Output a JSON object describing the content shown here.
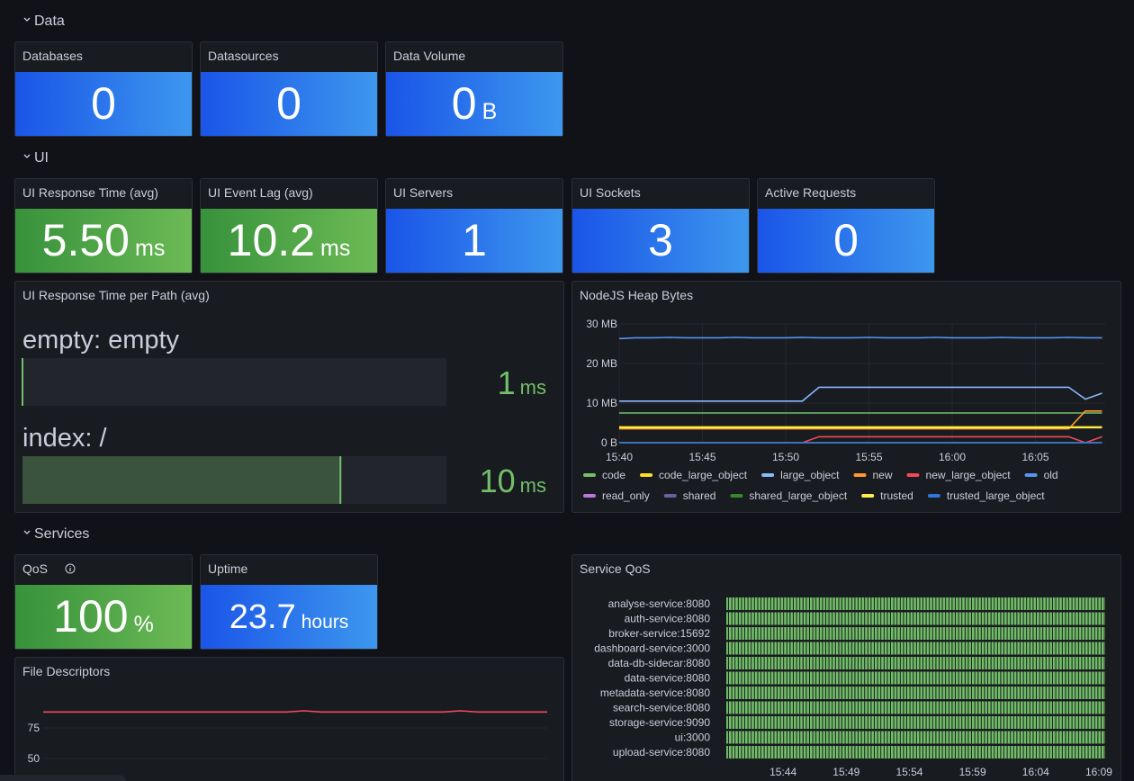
{
  "sections": [
    {
      "title": "Data"
    },
    {
      "title": "UI"
    },
    {
      "title": "Services"
    }
  ],
  "stats": [
    {
      "title": "Databases",
      "value": "0",
      "color": "blue"
    },
    {
      "title": "Datasources",
      "value": "0",
      "color": "blue"
    },
    {
      "title": "Data Volume",
      "value": "0",
      "unit": "B",
      "color": "blue"
    },
    {
      "title": "UI Response Time (avg)",
      "value": "5.50",
      "unit": "ms",
      "color": "green"
    },
    {
      "title": "UI Event Lag (avg)",
      "value": "10.2",
      "unit": "ms",
      "color": "green"
    },
    {
      "title": "UI Servers",
      "value": "1",
      "color": "blue"
    },
    {
      "title": "UI Sockets",
      "value": "3",
      "color": "blue"
    },
    {
      "title": "Active Requests",
      "value": "0",
      "color": "blue"
    },
    {
      "title": "QoS",
      "value": "100",
      "unit": "%",
      "color": "green"
    },
    {
      "title": "Uptime",
      "value": "23.7",
      "unit": "hours",
      "color": "blue"
    }
  ],
  "bar_gauge": {
    "title": "UI Response Time per Path (avg)",
    "min": 1,
    "max": 13,
    "bars": [
      {
        "label": "empty: empty",
        "value": 1,
        "unit": "ms"
      },
      {
        "label": "index: /",
        "value": 10,
        "unit": "ms"
      }
    ]
  },
  "heap_chart": {
    "type": "line",
    "title": "NodeJS Heap Bytes",
    "x": [
      "15:40",
      "15:41",
      "15:42",
      "15:43",
      "15:44",
      "15:45",
      "15:46",
      "15:47",
      "15:48",
      "15:49",
      "15:50",
      "15:51",
      "15:52",
      "15:53",
      "15:54",
      "15:55",
      "15:56",
      "15:57",
      "15:58",
      "15:59",
      "16:00",
      "16:01",
      "16:02",
      "16:03",
      "16:04",
      "16:05",
      "16:06",
      "16:07",
      "16:08",
      "16:09"
    ],
    "xticks": [
      "15:40",
      "15:45",
      "15:50",
      "15:55",
      "16:00",
      "16:05"
    ],
    "ylim": [
      0,
      30
    ],
    "yticks": [
      {
        "value": 0,
        "label": "0 B"
      },
      {
        "value": 10,
        "label": "10 MB"
      },
      {
        "value": 20,
        "label": "20 MB"
      },
      {
        "value": 30,
        "label": "30 MB"
      }
    ],
    "series": [
      {
        "name": "code",
        "color": "#73bf69",
        "values": [
          7.5,
          7.5,
          7.5,
          7.5,
          7.5,
          7.5,
          7.5,
          7.5,
          7.5,
          7.5,
          7.5,
          7.5,
          7.5,
          7.5,
          7.5,
          7.5,
          7.5,
          7.5,
          7.5,
          7.5,
          7.5,
          7.5,
          7.5,
          7.5,
          7.5,
          7.5,
          7.5,
          7.5,
          7.5,
          7.5
        ]
      },
      {
        "name": "code_large_object",
        "color": "#fade2a",
        "values": [
          4,
          4,
          4,
          4,
          4,
          4,
          4,
          4,
          4,
          4,
          4,
          4,
          4,
          4,
          4,
          4,
          4,
          4,
          4,
          4,
          4,
          4,
          4,
          4,
          4,
          4,
          4,
          4,
          4,
          4
        ]
      },
      {
        "name": "large_object",
        "color": "#8ab8ff",
        "values": [
          10.5,
          10.5,
          10.5,
          10.5,
          10.5,
          10.5,
          10.5,
          10.5,
          10.5,
          10.5,
          10.5,
          10.5,
          14,
          14,
          14,
          14,
          14,
          14,
          14,
          14,
          14,
          14,
          14,
          14,
          14,
          14,
          14,
          14,
          11,
          12.5
        ]
      },
      {
        "name": "new",
        "color": "#ff9830",
        "values": [
          3.5,
          3.5,
          3.5,
          3.5,
          3.5,
          3.5,
          3.5,
          3.5,
          3.5,
          3.5,
          3.5,
          3.5,
          3.5,
          3.5,
          3.5,
          3.5,
          3.5,
          3.5,
          3.5,
          3.5,
          3.5,
          3.5,
          3.5,
          3.5,
          3.5,
          3.5,
          3.5,
          3.5,
          8,
          8
        ]
      },
      {
        "name": "new_large_object",
        "color": "#f2495c",
        "values": [
          0,
          0,
          0,
          0,
          0,
          0,
          0,
          0,
          0,
          0,
          0,
          0,
          1.5,
          1.5,
          1.5,
          1.5,
          1.5,
          1.5,
          1.5,
          1.5,
          1.5,
          1.5,
          1.5,
          1.5,
          1.5,
          1.5,
          1.5,
          1.5,
          0,
          1.5
        ]
      },
      {
        "name": "old",
        "color": "#5794f2",
        "values": [
          26.3,
          26.5,
          26.5,
          26.6,
          26.5,
          26.5,
          26.5,
          26.6,
          26.5,
          26.5,
          26.5,
          26.6,
          26.5,
          26.5,
          26.5,
          26.6,
          26.5,
          26.5,
          26.5,
          26.6,
          26.5,
          26.5,
          26.5,
          26.6,
          26.5,
          26.5,
          26.5,
          26.6,
          26.5,
          26.5
        ]
      },
      {
        "name": "read_only",
        "color": "#b877d9",
        "values": [
          0,
          0,
          0,
          0,
          0,
          0,
          0,
          0,
          0,
          0,
          0,
          0,
          0,
          0,
          0,
          0,
          0,
          0,
          0,
          0,
          0,
          0,
          0,
          0,
          0,
          0,
          0,
          0,
          0,
          0
        ]
      },
      {
        "name": "shared",
        "color": "#705da0",
        "values": [
          0,
          0,
          0,
          0,
          0,
          0,
          0,
          0,
          0,
          0,
          0,
          0,
          0,
          0,
          0,
          0,
          0,
          0,
          0,
          0,
          0,
          0,
          0,
          0,
          0,
          0,
          0,
          0,
          0,
          0
        ]
      },
      {
        "name": "shared_large_object",
        "color": "#37872d",
        "values": [
          0,
          0,
          0,
          0,
          0,
          0,
          0,
          0,
          0,
          0,
          0,
          0,
          0,
          0,
          0,
          0,
          0,
          0,
          0,
          0,
          0,
          0,
          0,
          0,
          0,
          0,
          0,
          0,
          0,
          0
        ]
      },
      {
        "name": "trusted",
        "color": "#ffee52",
        "values": [
          3.8,
          3.8,
          3.8,
          3.8,
          3.8,
          3.8,
          3.8,
          3.8,
          3.8,
          3.8,
          3.8,
          3.8,
          3.8,
          3.8,
          3.8,
          3.8,
          3.8,
          3.8,
          3.8,
          3.8,
          3.8,
          3.8,
          3.8,
          3.8,
          3.8,
          3.8,
          3.8,
          3.8,
          3.8,
          3.8
        ]
      },
      {
        "name": "trusted_large_object",
        "color": "#3274d9",
        "values": [
          0,
          0,
          0,
          0,
          0,
          0,
          0,
          0,
          0,
          0,
          0,
          0,
          0,
          0,
          0,
          0,
          0,
          0,
          0,
          0,
          0,
          0,
          0,
          0,
          0,
          0,
          0,
          0,
          0,
          0
        ]
      }
    ]
  },
  "qos_chart": {
    "type": "status_history",
    "title": "Service QoS",
    "color": "#73bf69",
    "x": [
      "15:40",
      "15:41",
      "15:42",
      "15:43",
      "15:44",
      "15:45",
      "15:46",
      "15:47",
      "15:48",
      "15:49",
      "15:50",
      "15:51",
      "15:52",
      "15:53",
      "15:54",
      "15:55",
      "15:56",
      "15:57",
      "15:58",
      "15:59",
      "16:00",
      "16:01",
      "16:02",
      "16:03",
      "16:04",
      "16:05",
      "16:06",
      "16:07",
      "16:08",
      "16:09"
    ],
    "xticks": [
      "15:44",
      "15:49",
      "15:54",
      "15:59",
      "16:04",
      "16:09"
    ],
    "series": [
      {
        "name": "analyse-service:8080",
        "values": [
          1,
          1,
          1,
          1,
          1,
          1,
          1,
          1,
          1,
          1,
          1,
          1,
          1,
          1,
          1,
          1,
          1,
          1,
          1,
          1,
          1,
          1,
          1,
          1,
          1,
          1,
          1,
          1,
          1,
          1
        ]
      },
      {
        "name": "auth-service:8080",
        "values": [
          1,
          1,
          1,
          1,
          1,
          1,
          1,
          1,
          1,
          1,
          1,
          1,
          1,
          1,
          1,
          1,
          1,
          1,
          1,
          1,
          1,
          1,
          1,
          1,
          1,
          1,
          1,
          1,
          1,
          1
        ]
      },
      {
        "name": "broker-service:15692",
        "values": [
          1,
          1,
          1,
          1,
          1,
          1,
          1,
          1,
          1,
          1,
          1,
          1,
          1,
          1,
          1,
          1,
          1,
          1,
          1,
          1,
          1,
          1,
          1,
          1,
          1,
          1,
          1,
          1,
          1,
          1
        ]
      },
      {
        "name": "dashboard-service:3000",
        "values": [
          1,
          1,
          1,
          1,
          1,
          1,
          1,
          1,
          1,
          1,
          1,
          1,
          1,
          1,
          1,
          1,
          1,
          1,
          1,
          1,
          1,
          1,
          1,
          1,
          1,
          1,
          1,
          1,
          1,
          1
        ]
      },
      {
        "name": "data-db-sidecar:8080",
        "values": [
          1,
          1,
          1,
          1,
          1,
          1,
          1,
          1,
          1,
          1,
          1,
          1,
          1,
          1,
          1,
          1,
          1,
          1,
          1,
          1,
          1,
          1,
          1,
          1,
          1,
          1,
          1,
          1,
          1,
          1
        ]
      },
      {
        "name": "data-service:8080",
        "values": [
          1,
          1,
          1,
          1,
          1,
          1,
          1,
          1,
          1,
          1,
          1,
          1,
          1,
          1,
          1,
          1,
          1,
          1,
          1,
          1,
          1,
          1,
          1,
          1,
          1,
          1,
          1,
          1,
          1,
          1
        ]
      },
      {
        "name": "metadata-service:8080",
        "values": [
          1,
          1,
          1,
          1,
          1,
          1,
          1,
          1,
          1,
          1,
          1,
          1,
          1,
          1,
          1,
          1,
          1,
          1,
          1,
          1,
          1,
          1,
          1,
          1,
          1,
          1,
          1,
          1,
          1,
          1
        ]
      },
      {
        "name": "search-service:8080",
        "values": [
          1,
          1,
          1,
          1,
          1,
          1,
          1,
          1,
          1,
          1,
          1,
          1,
          1,
          1,
          1,
          1,
          1,
          1,
          1,
          1,
          1,
          1,
          1,
          1,
          1,
          1,
          1,
          1,
          1,
          1
        ]
      },
      {
        "name": "storage-service:9090",
        "values": [
          1,
          1,
          1,
          1,
          1,
          1,
          1,
          1,
          1,
          1,
          1,
          1,
          1,
          1,
          1,
          1,
          1,
          1,
          1,
          1,
          1,
          1,
          1,
          1,
          1,
          1,
          1,
          1,
          1,
          1
        ]
      },
      {
        "name": "ui:3000",
        "values": [
          1,
          1,
          1,
          1,
          1,
          1,
          1,
          1,
          1,
          1,
          1,
          1,
          1,
          1,
          1,
          1,
          1,
          1,
          1,
          1,
          1,
          1,
          1,
          1,
          1,
          1,
          1,
          1,
          1,
          1
        ]
      },
      {
        "name": "upload-service:8080",
        "values": [
          1,
          1,
          1,
          1,
          1,
          1,
          1,
          1,
          1,
          1,
          1,
          1,
          1,
          1,
          1,
          1,
          1,
          1,
          1,
          1,
          1,
          1,
          1,
          1,
          1,
          1,
          1,
          1,
          1,
          1
        ]
      }
    ]
  },
  "fd_chart": {
    "type": "line",
    "title": "File Descriptors",
    "color": "#f2495c",
    "ylim": [
      25,
      100
    ],
    "yticks": [
      50,
      75
    ],
    "grid": true,
    "values": [
      88,
      88,
      88,
      88,
      88,
      88,
      88,
      88,
      88,
      88,
      88,
      88,
      88,
      88,
      88,
      89,
      88,
      88,
      88,
      88,
      88,
      88,
      88,
      88,
      89,
      88,
      88,
      88,
      88,
      88
    ]
  }
}
